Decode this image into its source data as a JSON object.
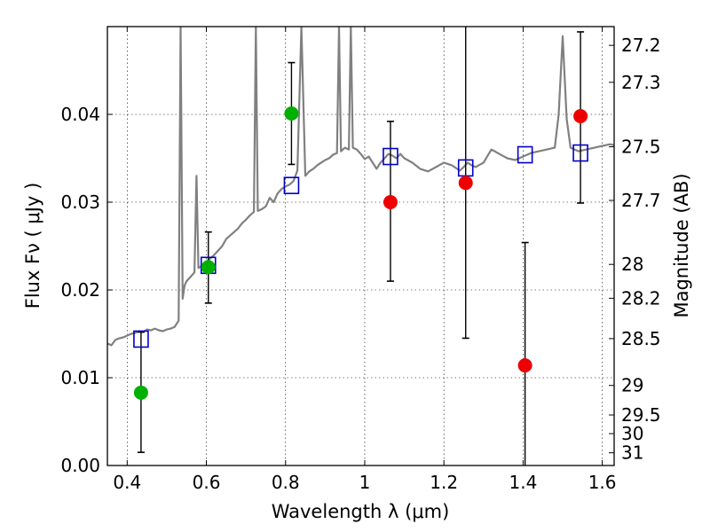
{
  "chart_data": {
    "type": "scatter",
    "title": "",
    "xlabel": "Wavelength  λ (μm)",
    "ylabel": "Flux  Fν  ( μJy )",
    "ylabel_right": "Magnitude (AB)",
    "xlim": [
      0.35,
      1.63
    ],
    "ylim": [
      0.0,
      0.05
    ],
    "grid": true,
    "x_ticks": [
      0.4,
      0.6,
      0.8,
      1.0,
      1.2,
      1.4,
      1.6
    ],
    "x_tick_labels": [
      "0.4",
      "0.6",
      "0.8",
      "1",
      "1.2",
      "1.4",
      "1.6"
    ],
    "y_ticks": [
      0.0,
      0.01,
      0.02,
      0.03,
      0.04
    ],
    "y_tick_labels": [
      "0.00",
      "0.01",
      "0.02",
      "0.03",
      "0.04"
    ],
    "right_ticks": [
      {
        "mag": 27.2,
        "label": "27.2"
      },
      {
        "mag": 27.3,
        "label": "27.3"
      },
      {
        "mag": 27.5,
        "label": "27.5"
      },
      {
        "mag": 27.7,
        "label": "27.7"
      },
      {
        "mag": 28.0,
        "label": "28"
      },
      {
        "mag": 28.2,
        "label": "28.2"
      },
      {
        "mag": 28.5,
        "label": "28.5"
      },
      {
        "mag": 29.0,
        "label": "29"
      },
      {
        "mag": 29.5,
        "label": "29.5"
      },
      {
        "mag": 30.0,
        "label": "30"
      },
      {
        "mag": 31.0,
        "label": "31"
      }
    ],
    "colors": {
      "spectrum": "#808080",
      "model": "#0000cc",
      "green": "#00b000",
      "red": "#ee0000",
      "errorbar": "#000000"
    },
    "spectrum": {
      "name": "",
      "x": [
        0.35,
        0.36,
        0.37,
        0.38,
        0.39,
        0.4,
        0.41,
        0.42,
        0.43,
        0.44,
        0.45,
        0.46,
        0.47,
        0.48,
        0.49,
        0.5,
        0.51,
        0.52,
        0.53,
        0.535,
        0.54,
        0.545,
        0.55,
        0.56,
        0.57,
        0.575,
        0.58,
        0.59,
        0.6,
        0.61,
        0.62,
        0.63,
        0.64,
        0.65,
        0.66,
        0.67,
        0.68,
        0.69,
        0.7,
        0.71,
        0.72,
        0.725,
        0.73,
        0.74,
        0.75,
        0.76,
        0.77,
        0.78,
        0.79,
        0.8,
        0.81,
        0.82,
        0.83,
        0.84,
        0.85,
        0.86,
        0.87,
        0.88,
        0.89,
        0.9,
        0.91,
        0.92,
        0.93,
        0.935,
        0.94,
        0.95,
        0.96,
        0.965,
        0.97,
        0.98,
        0.99,
        1.0,
        1.01,
        1.02,
        1.03,
        1.04,
        1.05,
        1.06,
        1.07,
        1.08,
        1.09,
        1.1,
        1.12,
        1.14,
        1.16,
        1.18,
        1.2,
        1.22,
        1.24,
        1.25,
        1.26,
        1.27,
        1.28,
        1.3,
        1.32,
        1.34,
        1.36,
        1.38,
        1.4,
        1.42,
        1.44,
        1.46,
        1.48,
        1.49,
        1.5,
        1.51,
        1.52,
        1.54,
        1.56,
        1.58,
        1.6,
        1.62,
        1.63
      ],
      "y": [
        0.0139,
        0.0137,
        0.0143,
        0.0145,
        0.0146,
        0.0148,
        0.015,
        0.0151,
        0.0153,
        0.0152,
        0.0155,
        0.0154,
        0.0156,
        0.0154,
        0.0153,
        0.0155,
        0.0156,
        0.0158,
        0.0165,
        0.05,
        0.019,
        0.0205,
        0.021,
        0.0215,
        0.022,
        0.033,
        0.0225,
        0.0228,
        0.0232,
        0.0236,
        0.024,
        0.0245,
        0.025,
        0.0258,
        0.0262,
        0.0266,
        0.027,
        0.0276,
        0.028,
        0.0285,
        0.0289,
        0.05,
        0.029,
        0.0292,
        0.0295,
        0.0305,
        0.03,
        0.031,
        0.0315,
        0.0318,
        0.032,
        0.0324,
        0.0336,
        0.05,
        0.033,
        0.0335,
        0.0338,
        0.0342,
        0.0345,
        0.0348,
        0.035,
        0.0354,
        0.0356,
        0.05,
        0.0358,
        0.0362,
        0.036,
        0.05,
        0.0362,
        0.036,
        0.0355,
        0.0349,
        0.0352,
        0.0345,
        0.0338,
        0.0345,
        0.035,
        0.0355,
        0.0353,
        0.035,
        0.0355,
        0.035,
        0.0345,
        0.0338,
        0.0335,
        0.034,
        0.0345,
        0.0342,
        0.0336,
        0.034,
        0.0345,
        0.0342,
        0.034,
        0.0345,
        0.036,
        0.0355,
        0.035,
        0.0348,
        0.0352,
        0.0356,
        0.0358,
        0.036,
        0.0362,
        0.04,
        0.0489,
        0.0395,
        0.0362,
        0.0358,
        0.036,
        0.0362,
        0.0364,
        0.0366,
        0.0365
      ]
    },
    "model_points": {
      "name": "",
      "x": [
        0.435,
        0.605,
        0.815,
        1.065,
        1.255,
        1.405,
        1.545
      ],
      "y": [
        0.0144,
        0.0228,
        0.0319,
        0.0352,
        0.0339,
        0.0354,
        0.0356
      ]
    },
    "green_points": {
      "name": "",
      "x": [
        0.435,
        0.605,
        0.815
      ],
      "y": [
        0.0083,
        0.0226,
        0.0401
      ],
      "err_low": [
        0.0015,
        0.0185,
        0.0343
      ],
      "err_high": [
        0.0152,
        0.0266,
        0.0459
      ]
    },
    "red_points": {
      "name": "",
      "x": [
        1.065,
        1.255,
        1.405,
        1.545
      ],
      "y": [
        0.03,
        0.0322,
        0.0114,
        0.0398
      ],
      "err_low": [
        0.021,
        0.0145,
        0.0,
        0.0299
      ],
      "err_high": [
        0.0392,
        0.05,
        0.0254,
        0.0494
      ]
    }
  }
}
